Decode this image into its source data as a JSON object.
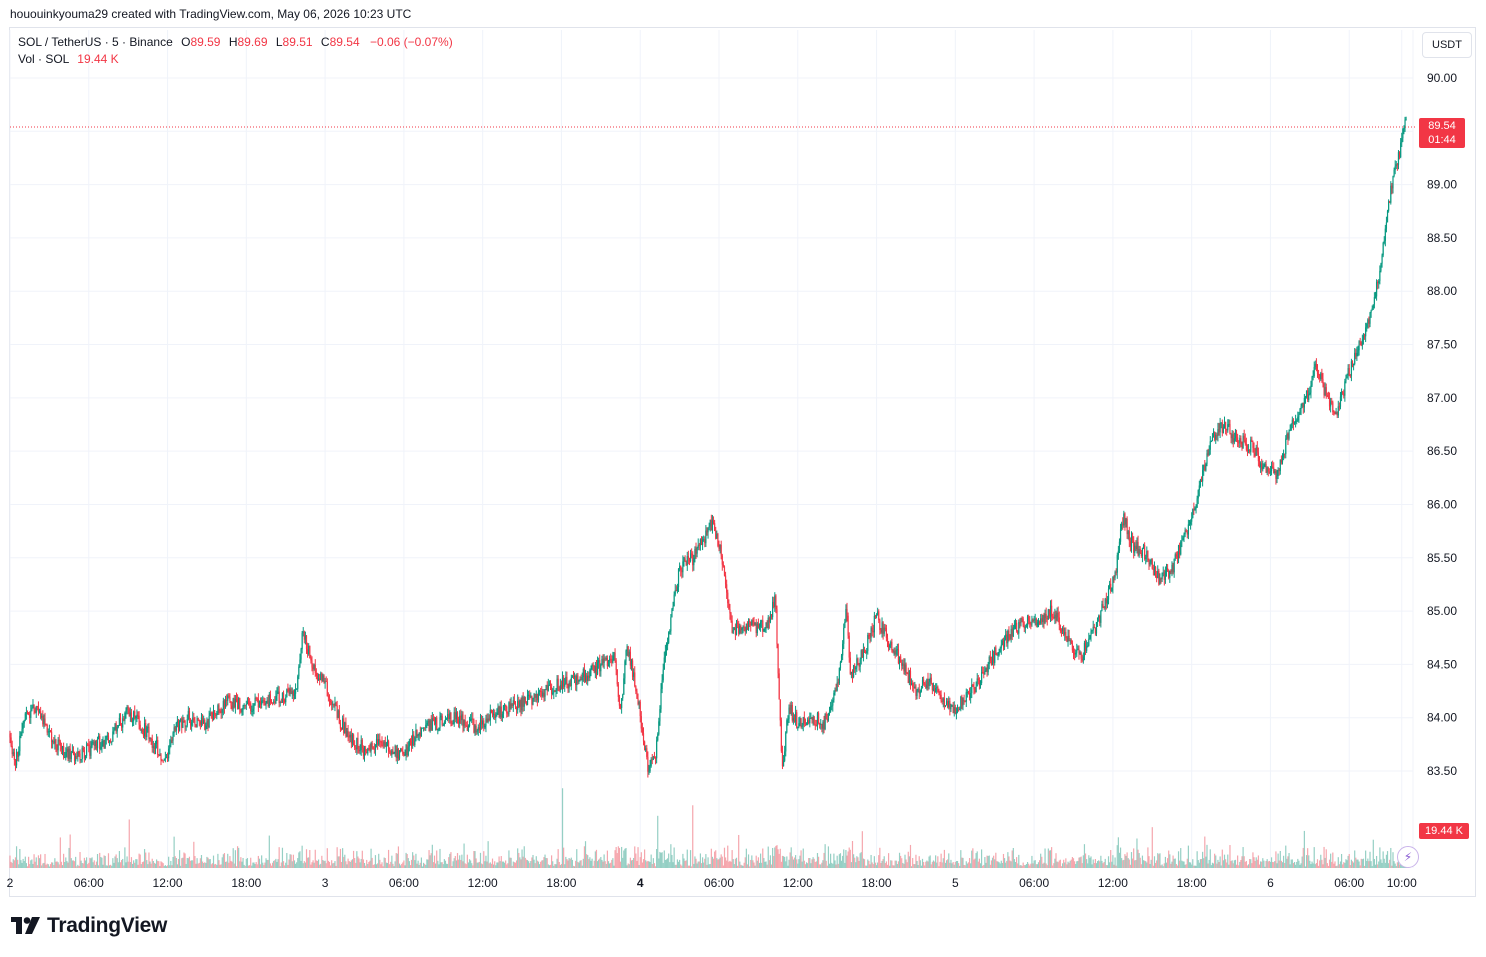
{
  "caption": "hououinkyouma29 created with TradingView.com, May 06, 2026 10:23 UTC",
  "legend": {
    "symbol": "SOL / TetherUS · 5 · Binance",
    "o_label": "O",
    "o": "89.59",
    "h_label": "H",
    "h": "89.69",
    "l_label": "L",
    "l": "89.51",
    "c_label": "C",
    "c": "89.54",
    "change": "−0.06 (−0.07%)",
    "vol_label": "Vol · SOL",
    "vol_value": "19.44 K"
  },
  "currency": "USDT",
  "last_price": "89.54",
  "countdown": "01:44",
  "last_volume": "19.44 K",
  "brand": "TradingView",
  "colors": {
    "up": "#089981",
    "down": "#f23645",
    "volume_up": "#95cfc4",
    "volume_down": "#f5a6ad",
    "grid": "#f0f3fa",
    "text": "#131722"
  },
  "chart_data": {
    "type": "candlestick",
    "symbol": "SOL / TetherUS",
    "interval": "5",
    "exchange": "Binance",
    "ylim": [
      83.0,
      90.25
    ],
    "y_ticks": [
      83.5,
      84.0,
      84.5,
      85.0,
      85.5,
      86.0,
      86.5,
      87.0,
      87.5,
      88.0,
      88.5,
      89.0,
      89.5,
      90.0
    ],
    "x_ticks": [
      {
        "label": "2",
        "h": 0.0
      },
      {
        "label": "06:00",
        "h": 6
      },
      {
        "label": "12:00",
        "h": 12
      },
      {
        "label": "18:00",
        "h": 18
      },
      {
        "label": "3",
        "h": 24
      },
      {
        "label": "06:00",
        "h": 30
      },
      {
        "label": "12:00",
        "h": 36
      },
      {
        "label": "18:00",
        "h": 42
      },
      {
        "label": "4",
        "h": 48
      },
      {
        "label": "06:00",
        "h": 54
      },
      {
        "label": "12:00",
        "h": 60
      },
      {
        "label": "18:00",
        "h": 66
      },
      {
        "label": "5",
        "h": 72
      },
      {
        "label": "06:00",
        "h": 78
      },
      {
        "label": "12:00",
        "h": 84
      },
      {
        "label": "18:00",
        "h": 90
      },
      {
        "label": "6",
        "h": 96
      },
      {
        "label": "06:00",
        "h": 102
      },
      {
        "label": "10:00",
        "h": 106
      }
    ],
    "x_range_hours": [
      0.0,
      106.4
    ],
    "price_path": [
      [
        0.0,
        83.85
      ],
      [
        0.4,
        83.55
      ],
      [
        1.0,
        83.95
      ],
      [
        2.0,
        84.1
      ],
      [
        3.0,
        83.85
      ],
      [
        4.0,
        83.7
      ],
      [
        5.0,
        83.6
      ],
      [
        6.5,
        83.75
      ],
      [
        7.5,
        83.8
      ],
      [
        9.0,
        84.05
      ],
      [
        10.5,
        83.85
      ],
      [
        11.8,
        83.6
      ],
      [
        12.5,
        83.9
      ],
      [
        13.5,
        84.0
      ],
      [
        15.0,
        83.95
      ],
      [
        16.5,
        84.15
      ],
      [
        18.0,
        84.1
      ],
      [
        19.5,
        84.15
      ],
      [
        21.0,
        84.2
      ],
      [
        21.8,
        84.25
      ],
      [
        22.3,
        84.85
      ],
      [
        23.0,
        84.5
      ],
      [
        24.0,
        84.3
      ],
      [
        25.0,
        84.0
      ],
      [
        26.0,
        83.8
      ],
      [
        27.0,
        83.7
      ],
      [
        28.0,
        83.75
      ],
      [
        29.0,
        83.7
      ],
      [
        30.0,
        83.65
      ],
      [
        31.0,
        83.85
      ],
      [
        32.5,
        83.95
      ],
      [
        34.0,
        84.0
      ],
      [
        35.5,
        83.9
      ],
      [
        37.0,
        84.05
      ],
      [
        38.5,
        84.1
      ],
      [
        40.0,
        84.2
      ],
      [
        41.5,
        84.3
      ],
      [
        43.0,
        84.35
      ],
      [
        44.5,
        84.45
      ],
      [
        46.0,
        84.6
      ],
      [
        46.5,
        84.05
      ],
      [
        47.0,
        84.7
      ],
      [
        47.8,
        84.2
      ],
      [
        48.6,
        83.5
      ],
      [
        49.2,
        83.7
      ],
      [
        49.8,
        84.5
      ],
      [
        50.4,
        85.0
      ],
      [
        51.0,
        85.4
      ],
      [
        52.0,
        85.5
      ],
      [
        53.0,
        85.7
      ],
      [
        53.5,
        85.85
      ],
      [
        54.3,
        85.45
      ],
      [
        55.0,
        84.8
      ],
      [
        55.6,
        84.85
      ],
      [
        56.5,
        84.85
      ],
      [
        57.5,
        84.85
      ],
      [
        58.3,
        85.1
      ],
      [
        58.8,
        83.5
      ],
      [
        59.3,
        84.1
      ],
      [
        60.0,
        83.95
      ],
      [
        61.0,
        84.0
      ],
      [
        62.0,
        83.95
      ],
      [
        63.0,
        84.3
      ],
      [
        63.7,
        85.0
      ],
      [
        64.0,
        84.4
      ],
      [
        65.0,
        84.6
      ],
      [
        66.0,
        84.95
      ],
      [
        67.0,
        84.7
      ],
      [
        68.0,
        84.5
      ],
      [
        69.0,
        84.25
      ],
      [
        70.0,
        84.35
      ],
      [
        71.0,
        84.15
      ],
      [
        72.0,
        84.1
      ],
      [
        73.5,
        84.3
      ],
      [
        75.0,
        84.6
      ],
      [
        76.5,
        84.85
      ],
      [
        78.0,
        84.9
      ],
      [
        79.5,
        85.0
      ],
      [
        80.5,
        84.75
      ],
      [
        81.5,
        84.55
      ],
      [
        82.5,
        84.8
      ],
      [
        83.5,
        85.1
      ],
      [
        84.3,
        85.45
      ],
      [
        84.8,
        85.9
      ],
      [
        85.5,
        85.6
      ],
      [
        86.5,
        85.55
      ],
      [
        87.5,
        85.3
      ],
      [
        88.5,
        85.4
      ],
      [
        89.5,
        85.7
      ],
      [
        90.5,
        86.1
      ],
      [
        91.5,
        86.6
      ],
      [
        92.5,
        86.75
      ],
      [
        93.5,
        86.6
      ],
      [
        94.5,
        86.55
      ],
      [
        95.5,
        86.35
      ],
      [
        96.5,
        86.3
      ],
      [
        97.5,
        86.7
      ],
      [
        98.5,
        86.9
      ],
      [
        99.5,
        87.3
      ],
      [
        100.3,
        87.0
      ],
      [
        101.0,
        86.85
      ],
      [
        102.0,
        87.25
      ],
      [
        103.0,
        87.55
      ],
      [
        104.0,
        87.95
      ],
      [
        104.7,
        88.55
      ],
      [
        105.2,
        89.0
      ],
      [
        105.8,
        89.3
      ],
      [
        106.2,
        89.6
      ],
      [
        106.4,
        89.54
      ]
    ]
  }
}
